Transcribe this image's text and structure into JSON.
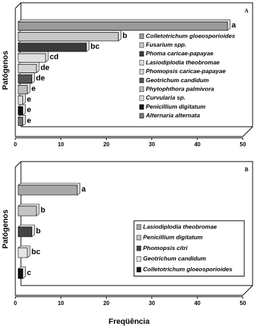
{
  "chart_data": [
    {
      "type": "bar",
      "panel": "A",
      "ylabel": "Patógenos",
      "categories": [
        "Colletotrichum gloeosporioides",
        "Fusarium spp.",
        "Phoma caricae-papayae",
        "Lasiodiplodia theobromae",
        "Phomopsis caricae-papayae",
        "Geotrichum candidum",
        "Phytophthora palmivora",
        "Curvularia sp.",
        "Penicillium digitatum",
        "Alternaria alternata"
      ],
      "values": [
        46,
        22,
        15,
        6,
        4,
        3,
        2,
        1,
        1,
        1
      ],
      "annotations": [
        "a",
        "b",
        "bc",
        "cd",
        "de",
        "de",
        "e",
        "e",
        "e",
        "e"
      ],
      "colors": [
        "#9a9a9a",
        "#c8c8c8",
        "#3a3a3a",
        "#e0e0e0",
        "#d4d4d4",
        "#555555",
        "#bcbcbc",
        "#dcdcdc",
        "#111111",
        "#777777"
      ],
      "xlim": [
        0,
        50
      ],
      "xticks": [
        0,
        10,
        20,
        30,
        40,
        50
      ]
    },
    {
      "type": "bar",
      "panel": "B",
      "ylabel": "Patógenos",
      "xlabel": "Freqüência",
      "categories": [
        "Lasiodiplodia theobromae",
        "Penicillium digitatum",
        "Phomopsis citri",
        "Geotrichum candidum",
        "Colletotrichum gloeosporioides"
      ],
      "values": [
        13,
        4,
        3,
        2,
        1
      ],
      "annotations": [
        "a",
        "b",
        "b",
        "bc",
        "c"
      ],
      "colors": [
        "#a8a8a8",
        "#c4c4c4",
        "#444444",
        "#e4e4e4",
        "#111111"
      ],
      "xlim": [
        0,
        50
      ],
      "xticks": [
        0,
        10,
        20,
        30,
        40,
        50
      ]
    }
  ]
}
